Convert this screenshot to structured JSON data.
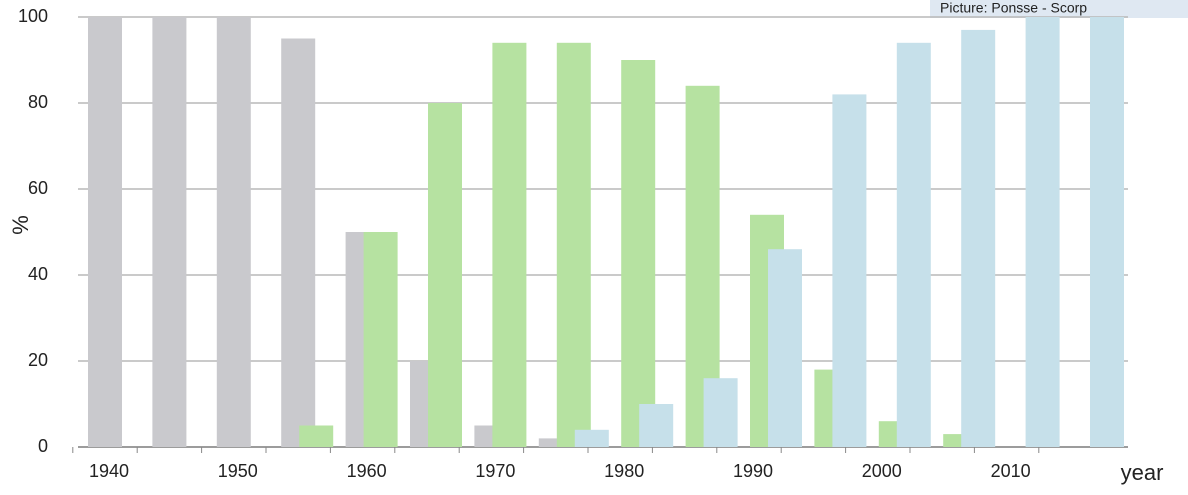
{
  "chart_data": {
    "type": "bar",
    "credit": "Picture: Ponsse - Scorp",
    "y_label": "%",
    "x_label": "year",
    "categories": [
      "1940",
      null,
      "1950",
      null,
      "1960",
      null,
      "1970",
      null,
      "1980",
      null,
      "1990",
      null,
      "2000",
      null,
      "2010",
      null
    ],
    "series": [
      {
        "color": "#c9c9cd",
        "values": [
          100,
          100,
          100,
          95,
          50,
          20,
          5,
          2,
          0,
          0,
          0,
          0,
          0,
          0,
          0,
          0
        ]
      },
      {
        "color": "#b6e2a1",
        "values": [
          0,
          0,
          0,
          5,
          50,
          80,
          94,
          94,
          90,
          84,
          54,
          18,
          6,
          3,
          0,
          0
        ]
      },
      {
        "color": "#c6e0ea",
        "values": [
          0,
          0,
          0,
          0,
          0,
          0,
          0,
          4,
          10,
          16,
          46,
          82,
          94,
          97,
          100,
          100
        ]
      }
    ],
    "ylim": [
      0,
      100
    ],
    "yticks": [
      0,
      20,
      40,
      60,
      80,
      100
    ],
    "grid": true
  }
}
